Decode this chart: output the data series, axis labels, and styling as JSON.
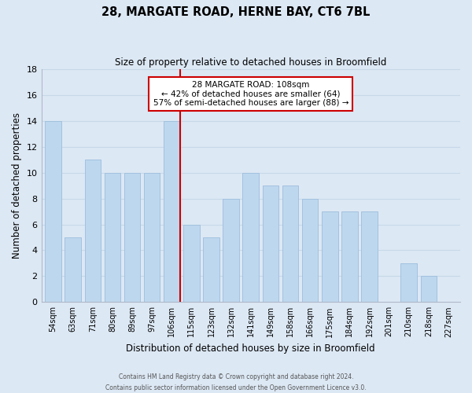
{
  "title": "28, MARGATE ROAD, HERNE BAY, CT6 7BL",
  "subtitle": "Size of property relative to detached houses in Broomfield",
  "xlabel": "Distribution of detached houses by size in Broomfield",
  "ylabel": "Number of detached properties",
  "bar_labels": [
    "54sqm",
    "63sqm",
    "71sqm",
    "80sqm",
    "89sqm",
    "97sqm",
    "106sqm",
    "115sqm",
    "123sqm",
    "132sqm",
    "141sqm",
    "149sqm",
    "158sqm",
    "166sqm",
    "175sqm",
    "184sqm",
    "192sqm",
    "201sqm",
    "210sqm",
    "218sqm",
    "227sqm"
  ],
  "bar_values": [
    14,
    5,
    11,
    10,
    10,
    10,
    14,
    6,
    5,
    8,
    10,
    9,
    9,
    8,
    7,
    7,
    7,
    0,
    3,
    2,
    0
  ],
  "bar_color": "#bdd7ee",
  "bar_edge_color": "#9dbddd",
  "highlight_index": 6,
  "highlight_line_color": "#cc0000",
  "ylim": [
    0,
    18
  ],
  "yticks": [
    0,
    2,
    4,
    6,
    8,
    10,
    12,
    14,
    16,
    18
  ],
  "annotation_title": "28 MARGATE ROAD: 108sqm",
  "annotation_line1": "← 42% of detached houses are smaller (64)",
  "annotation_line2": "57% of semi-detached houses are larger (88) →",
  "annotation_box_color": "#ffffff",
  "annotation_border_color": "#cc0000",
  "footer_line1": "Contains HM Land Registry data © Crown copyright and database right 2024.",
  "footer_line2": "Contains public sector information licensed under the Open Government Licence v3.0.",
  "grid_color": "#c8d8e8",
  "background_color": "#dce8f4"
}
